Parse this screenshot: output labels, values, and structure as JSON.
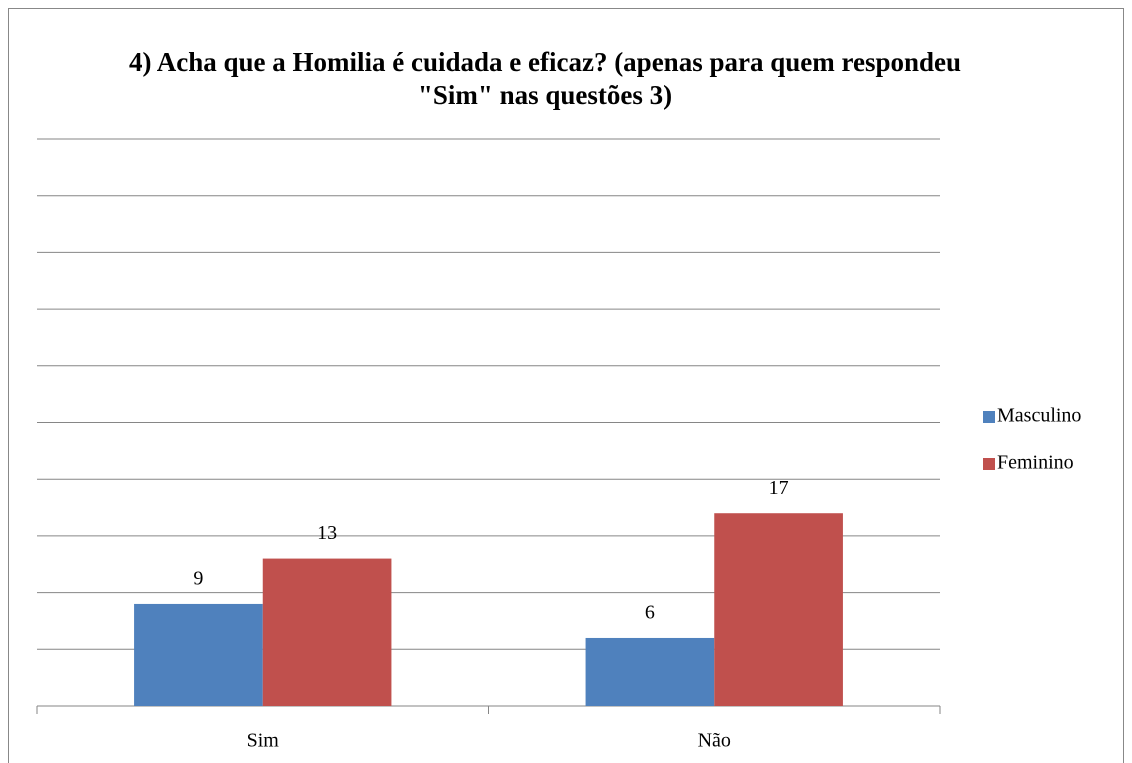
{
  "chart_data": {
    "type": "bar",
    "title": "4) Acha que a Homilia é cuidada e eficaz? (apenas para quem respondeu \"Sim\" nas questões 3)",
    "categories": [
      "Sim",
      "Não"
    ],
    "series": [
      {
        "name": "Masculino",
        "color": "#4f81bd",
        "values": [
          9,
          6
        ]
      },
      {
        "name": "Feminino",
        "color": "#c0504d",
        "values": [
          13,
          17
        ]
      }
    ],
    "ylim": [
      0,
      50
    ],
    "yticks": [
      0,
      5,
      10,
      15,
      20,
      25,
      30,
      35,
      40,
      45,
      50
    ],
    "grid": true,
    "legend": "right"
  }
}
